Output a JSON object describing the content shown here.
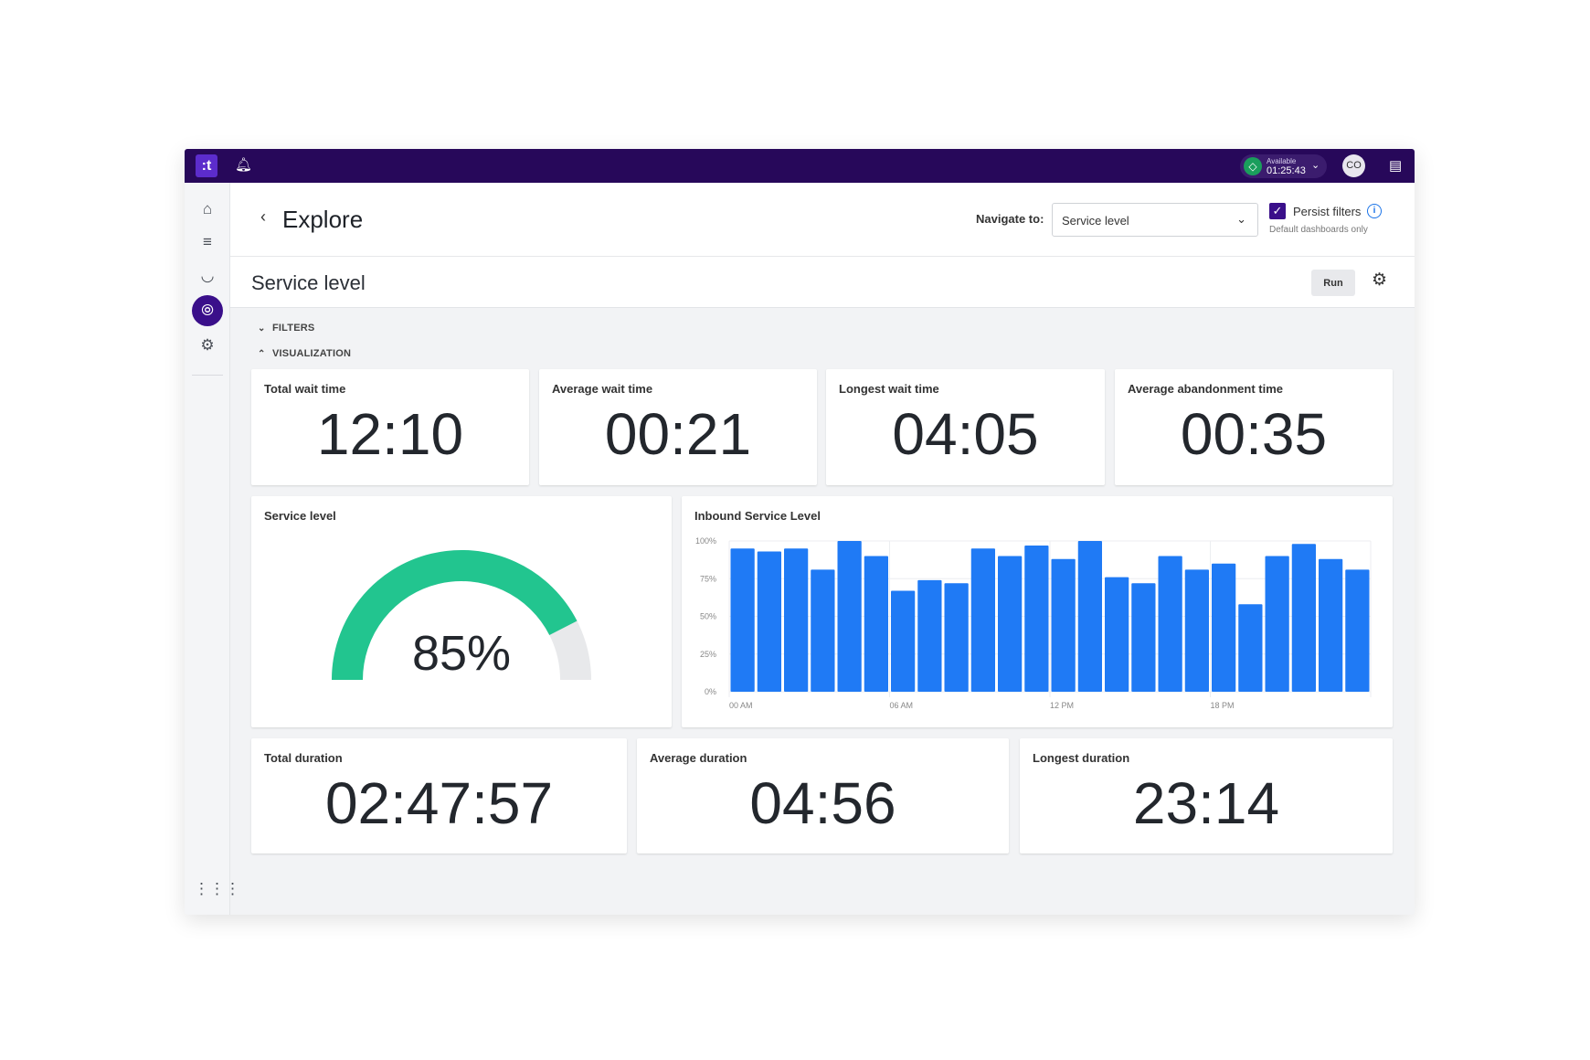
{
  "topbar": {
    "logo": ":t",
    "status_label": "Available",
    "status_time": "01:25:43",
    "avatar_initials": "CO",
    "status_color": "#1a9e5c"
  },
  "sidebar": {
    "items": [
      "home-icon",
      "list-icon",
      "gauge-icon",
      "compass-icon",
      "gear-icon"
    ],
    "active": "compass-icon",
    "apps": "apps-grid-icon"
  },
  "header": {
    "title": "Explore",
    "navigate_label": "Navigate to:",
    "navigate_value": "Service level",
    "persist_label": "Persist filters",
    "persist_checked": true,
    "persist_sub": "Default dashboards only"
  },
  "subheader": {
    "title": "Service level",
    "run_label": "Run"
  },
  "sections": {
    "filters": "FILTERS",
    "visualization": "VISUALIZATION"
  },
  "kpis": [
    {
      "label": "Total wait time",
      "value": "12:10"
    },
    {
      "label": "Average wait time",
      "value": "00:21"
    },
    {
      "label": "Longest wait time",
      "value": "04:05"
    },
    {
      "label": "Average abandonment time",
      "value": "00:35"
    }
  ],
  "gauge": {
    "label": "Service level",
    "value_text": "85%",
    "value": 85,
    "color": "#22c58f",
    "track_color": "#e8e9eb"
  },
  "durations": [
    {
      "label": "Total duration",
      "value": "02:47:57"
    },
    {
      "label": "Average duration",
      "value": "04:56"
    },
    {
      "label": "Longest duration",
      "value": "23:14"
    }
  ],
  "chart_data": {
    "type": "bar",
    "title": "Inbound Service Level",
    "color": "#1f7af5",
    "ylim": [
      0,
      100
    ],
    "yticks": [
      "0%",
      "25%",
      "50%",
      "75%",
      "100%"
    ],
    "xticks": [
      {
        "label": "00 AM",
        "index": 0
      },
      {
        "label": "06 AM",
        "index": 6
      },
      {
        "label": "12 PM",
        "index": 12
      },
      {
        "label": "18 PM",
        "index": 18
      }
    ],
    "values": [
      95,
      93,
      95,
      81,
      100,
      90,
      67,
      74,
      72,
      95,
      90,
      97,
      88,
      100,
      76,
      72,
      90,
      81,
      85,
      58,
      90,
      98,
      88,
      81
    ],
    "grid": true
  }
}
